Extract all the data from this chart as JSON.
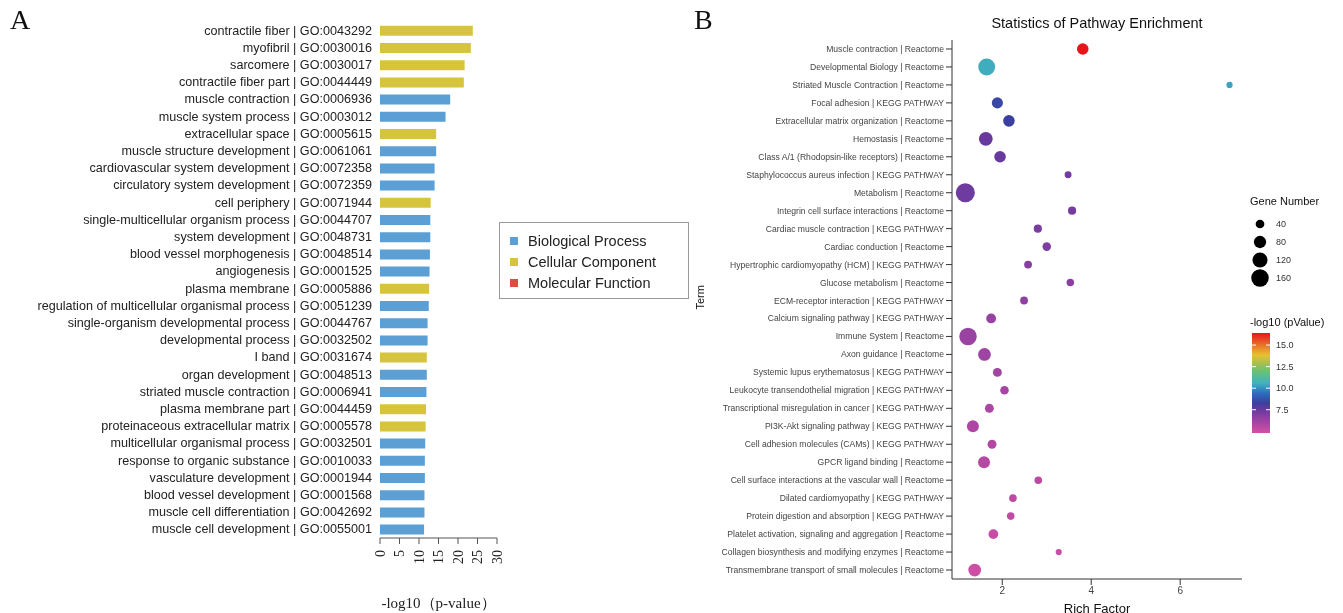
{
  "chart_data": [
    {
      "type": "bar",
      "orientation": "horizontal",
      "stacked": true,
      "annotations": [
        "A"
      ],
      "xlabel": "-log10（p-value）",
      "legend": "right",
      "xlim": [
        0,
        30
      ],
      "xticks": [
        0,
        5,
        10,
        15,
        20,
        25,
        30
      ],
      "categories": [
        "contractile fiber | GO:0043292",
        "myofibril | GO:0030016",
        "sarcomere | GO:0030017",
        "contractile fiber part | GO:0044449",
        "muscle contraction | GO:0006936",
        "muscle system process | GO:0003012",
        "extracellular space | GO:0005615",
        "muscle structure development | GO:0061061",
        "cardiovascular system development | GO:0072358",
        "circulatory system development | GO:0072359",
        "cell periphery | GO:0071944",
        "single-multicellular organism process | GO:0044707",
        "system development | GO:0048731",
        "blood vessel morphogenesis | GO:0048514",
        "angiogenesis | GO:0001525",
        "plasma membrane | GO:0005886",
        "regulation of multicellular organismal process | GO:0051239",
        "single-organism developmental process | GO:0044767",
        "developmental process | GO:0032502",
        "I band | GO:0031674",
        "organ development | GO:0048513",
        "striated muscle contraction | GO:0006941",
        "plasma membrane part | GO:0044459",
        "proteinaceous extracellular matrix | GO:0005578",
        "multicellular organismal process | GO:0032501",
        "response to organic substance | GO:0010033",
        "vasculature development | GO:0001944",
        "blood vessel development | GO:0001568",
        "muscle cell differentiation | GO:0042692",
        "muscle cell development | GO:0055001"
      ],
      "series": [
        {
          "name": "Biological Process",
          "color": "#5b9fd4",
          "values": [
            null,
            null,
            null,
            null,
            18.0,
            16.8,
            null,
            14.4,
            14.0,
            14.0,
            null,
            12.9,
            12.9,
            12.8,
            12.7,
            null,
            12.5,
            12.2,
            12.2,
            null,
            12.0,
            11.9,
            null,
            null,
            11.6,
            11.5,
            11.5,
            11.4,
            11.4,
            11.3
          ]
        },
        {
          "name": "Cellular Component",
          "color": "#d6c43e",
          "values": [
            23.8,
            23.3,
            21.7,
            21.5,
            null,
            null,
            14.4,
            null,
            null,
            null,
            13.0,
            null,
            null,
            null,
            null,
            12.6,
            null,
            null,
            null,
            12.0,
            null,
            null,
            11.8,
            11.7,
            null,
            null,
            null,
            null,
            null,
            null
          ]
        },
        {
          "name": "Molecular Function",
          "color": "#e5483f",
          "values": [
            null,
            null,
            null,
            null,
            null,
            null,
            null,
            null,
            null,
            null,
            null,
            null,
            null,
            null,
            null,
            null,
            null,
            null,
            null,
            null,
            null,
            null,
            null,
            null,
            null,
            null,
            null,
            null,
            null,
            null
          ]
        }
      ]
    },
    {
      "type": "bubble",
      "orientation": "horizontal",
      "annotations": [
        "B"
      ],
      "title": "Statistics of Pathway Enrichment",
      "xlabel": "Rich Factor",
      "ylabel": "Term",
      "legend_title": "Gene Number",
      "size_legend": [
        40,
        80,
        120,
        160
      ],
      "clabel": "-log10 (pValue)",
      "clim": [
        4.8,
        16.4
      ],
      "cticks": [
        7.5,
        {
          "value": 10,
          "label": "10.0"
        },
        12.5,
        {
          "value": 15,
          "label": "15.0"
        }
      ],
      "xlim": [
        0.87,
        7.39
      ],
      "xticks": [
        2,
        4,
        6
      ],
      "categories": [
        "Muscle contraction | Reactome",
        "Developmental Biology | Reactome",
        "Striated Muscle Contraction | Reactome",
        "Focal adhesion | KEGG PATHWAY",
        "Extracellular matrix organization | Reactome",
        "Hemostasis | Reactome",
        "Class A/1 (Rhodopsin-like receptors) | Reactome",
        "Staphylococcus aureus infection | KEGG PATHWAY",
        "Metabolism | Reactome",
        "Integrin cell surface interactions | Reactome",
        "Cardiac muscle contraction | KEGG PATHWAY",
        "Cardiac conduction | Reactome",
        "Hypertrophic cardiomyopathy (HCM) | KEGG PATHWAY",
        "Glucose metabolism | Reactome",
        "ECM-receptor interaction | KEGG PATHWAY",
        "Calcium signaling pathway | KEGG PATHWAY",
        "Immune System | Reactome",
        "Axon guidance | Reactome",
        "Systemic lupus erythematosus | KEGG PATHWAY",
        "Leukocyte transendothelial migration | KEGG PATHWAY",
        "Transcriptional misregulation in cancer | KEGG PATHWAY",
        "PI3K-Akt signaling pathway | KEGG PATHWAY",
        "Cell adhesion molecules (CAMs) | KEGG PATHWAY",
        "GPCR ligand binding | Reactome",
        "Cell surface interactions at the vascular wall | Reactome",
        "Dilated cardiomyopathy | KEGG PATHWAY",
        "Protein digestion and absorption | KEGG PATHWAY",
        "Platelet activation, signaling and aggregation | Reactome",
        "Collagen biosynthesis and modifying enzymes | Reactome",
        "Transmembrane transport of small molecules | Reactome"
      ],
      "values": [
        3.81,
        1.65,
        7.11,
        1.89,
        2.15,
        1.63,
        1.95,
        3.48,
        1.17,
        3.57,
        2.8,
        3.0,
        2.58,
        3.53,
        2.49,
        1.75,
        1.23,
        1.6,
        1.89,
        2.05,
        1.71,
        1.34,
        1.77,
        1.59,
        2.81,
        2.24,
        2.19,
        1.8,
        3.27,
        1.38
      ],
      "sizes": [
        70,
        150,
        20,
        65,
        70,
        100,
        70,
        25,
        190,
        35,
        35,
        38,
        32,
        30,
        32,
        50,
        160,
        85,
        42,
        38,
        42,
        75,
        42,
        75,
        30,
        30,
        30,
        50,
        20,
        85
      ],
      "cvalues": [
        16.4,
        10.5,
        10.3,
        8.5,
        8.3,
        7.5,
        7.5,
        7.3,
        7.4,
        7.2,
        7.1,
        7.0,
        6.8,
        6.7,
        6.6,
        6.4,
        6.3,
        6.2,
        6.1,
        6.0,
        5.9,
        5.8,
        5.7,
        5.6,
        5.5,
        5.4,
        5.3,
        5.2,
        5.1,
        5.0
      ]
    }
  ]
}
